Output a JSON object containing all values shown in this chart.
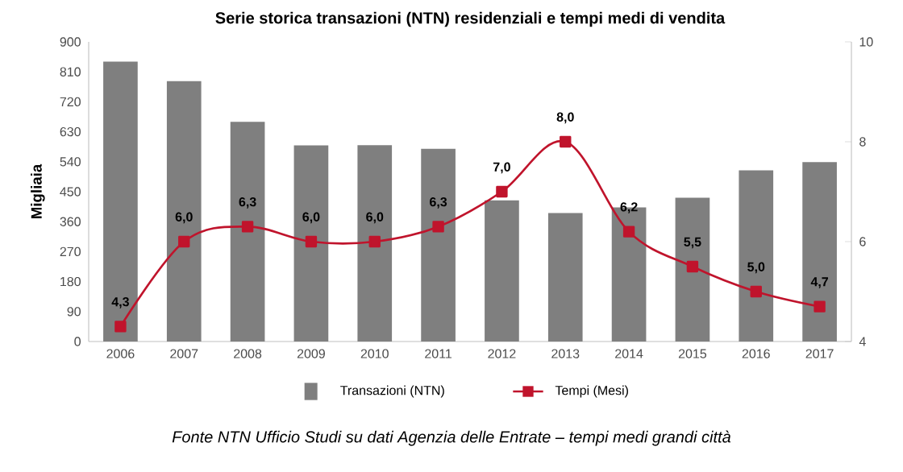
{
  "chart_data": {
    "type": "bar",
    "title": "Serie storica transazioni (NTN) residenziali e tempi medi di vendita",
    "categories": [
      "2006",
      "2007",
      "2008",
      "2009",
      "2010",
      "2011",
      "2012",
      "2013",
      "2014",
      "2015",
      "2016",
      "2017"
    ],
    "ylabel": "Migliaia",
    "ylim": [
      0,
      900
    ],
    "yticks": [
      0,
      90,
      180,
      270,
      360,
      450,
      540,
      630,
      720,
      810,
      900
    ],
    "y2lim": [
      4,
      10
    ],
    "y2ticks": [
      4,
      6,
      8,
      10
    ],
    "legend": "bottom",
    "series": [
      {
        "name": "Transazioni (NTN)",
        "color": "#7f7f7f",
        "values": [
          841,
          782,
          660,
          589,
          590,
          579,
          424,
          386,
          403,
          432,
          514,
          539
        ]
      },
      {
        "name": "Tempi (Mesi)",
        "type": "line",
        "axis": "y2",
        "color": "#c0142c",
        "marker": "square",
        "line_style": "solid",
        "values": [
          4.3,
          6.0,
          6.3,
          6.0,
          6.0,
          6.3,
          7.0,
          8.0,
          6.2,
          5.5,
          5.0,
          4.7
        ],
        "value_labels": [
          "4,3",
          "6,0",
          "6,3",
          "6,0",
          "6,0",
          "6,3",
          "7,0",
          "8,0",
          "6,2",
          "5,5",
          "5,0",
          "4,7"
        ]
      }
    ],
    "annotations": [
      "Fonte NTN Ufficio Studi su dati Agenzia delle Entrate – tempi medi grandi città"
    ]
  }
}
